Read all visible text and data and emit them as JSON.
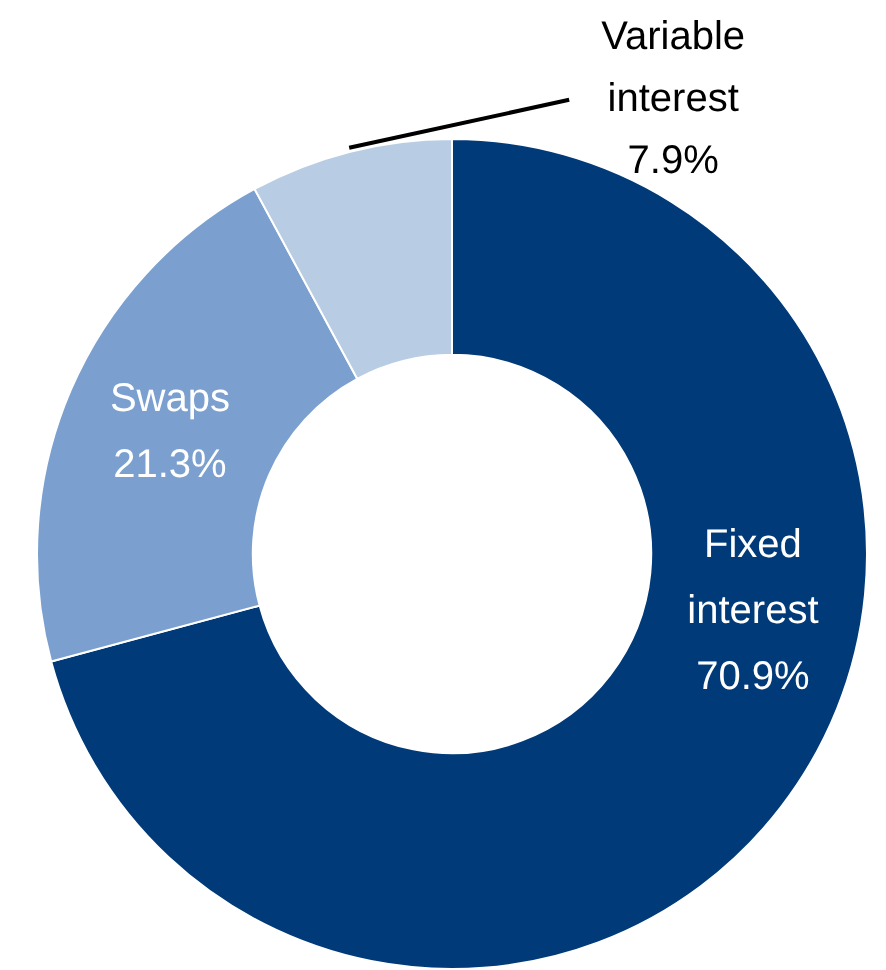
{
  "chart_data": {
    "type": "donut",
    "categories": [
      "Fixed interest",
      "Swaps",
      "Variable interest"
    ],
    "values": [
      70.9,
      21.3,
      7.9
    ],
    "colors": [
      "#003a78",
      "#7ba0cf",
      "#b8cce4"
    ],
    "value_labels": [
      "70.9%",
      "21.3%",
      "7.9%"
    ],
    "legend": false
  }
}
